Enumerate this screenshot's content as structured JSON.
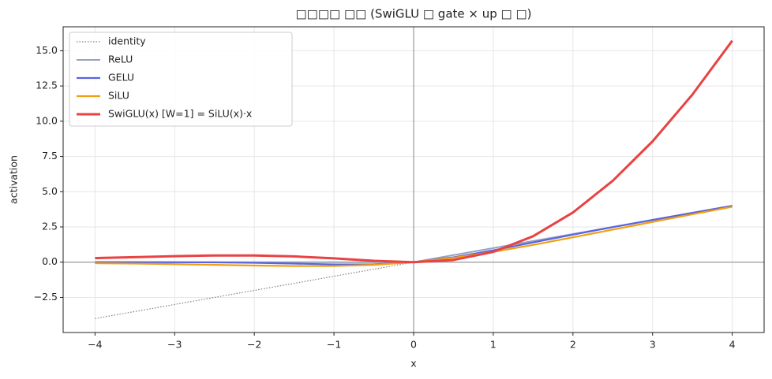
{
  "chart_data": {
    "type": "line",
    "title": "□□□□ □□ (SwiGLU □ gate × up □ □)",
    "x_label": "x",
    "y_label": "activation",
    "x": [
      -4,
      -3.5,
      -3,
      -2.5,
      -2,
      -1.5,
      -1,
      -0.5,
      0,
      0.5,
      1,
      1.5,
      2,
      2.5,
      3,
      3.5,
      4
    ],
    "series": [
      {
        "name": "identity",
        "color": "#808080",
        "width": 1.2,
        "dash": "dotted",
        "values": [
          -4,
          -3.5,
          -3,
          -2.5,
          -2,
          -1.5,
          -1,
          -0.5,
          0,
          0.5,
          1,
          1.5,
          2,
          2.5,
          3,
          3.5,
          4
        ]
      },
      {
        "name": "ReLU",
        "color": "#94a3c2",
        "width": 2,
        "dash": "solid",
        "values": [
          0,
          0,
          0,
          0,
          0,
          0,
          0,
          0,
          0,
          0.5,
          1,
          1.5,
          2,
          2.5,
          3,
          3.5,
          4
        ]
      },
      {
        "name": "GELU",
        "color": "#5b63e0",
        "width": 2.2,
        "dash": "solid",
        "values": [
          -0.0001,
          -0.0008,
          -0.004,
          -0.0155,
          -0.0455,
          -0.1002,
          -0.1587,
          -0.1543,
          0,
          0.3457,
          0.8413,
          1.3998,
          1.9545,
          2.4845,
          2.996,
          3.4992,
          3.9999
        ]
      },
      {
        "name": "SiLU",
        "color": "#f0a010",
        "width": 2.2,
        "dash": "solid",
        "values": [
          -0.0719,
          -0.1026,
          -0.1423,
          -0.1896,
          -0.2384,
          -0.2736,
          -0.2689,
          -0.1888,
          0,
          0.3112,
          0.7311,
          1.2264,
          1.7616,
          2.3103,
          2.8577,
          3.3974,
          3.9281
        ]
      },
      {
        "name": "SwiGLU(x) [W=1]  = SiLU(x)·x",
        "color": "#e84343",
        "width": 3,
        "dash": "solid",
        "values": [
          0.2878,
          0.359,
          0.4269,
          0.4741,
          0.4768,
          0.4104,
          0.2689,
          0.0944,
          0,
          0.1556,
          0.7311,
          1.8396,
          3.5232,
          5.7758,
          8.5731,
          11.891,
          15.712
        ]
      }
    ],
    "xlim": [
      -4.4,
      4.4
    ],
    "xticks": [
      {
        "value": -4,
        "label": "−4"
      },
      {
        "value": -3,
        "label": "−3"
      },
      {
        "value": -2,
        "label": "−2"
      },
      {
        "value": -1,
        "label": "−1"
      },
      0,
      1,
      2,
      3,
      4
    ],
    "ylim": [
      -4.99,
      16.7
    ],
    "yticks": [
      {
        "value": -2.5,
        "label": "−2.5"
      },
      {
        "value": 0,
        "label": "0.0"
      },
      {
        "value": 2.5,
        "label": "2.5"
      },
      {
        "value": 5,
        "label": "5.0"
      },
      {
        "value": 7.5,
        "label": "7.5"
      },
      {
        "value": 10,
        "label": "10.0"
      },
      {
        "value": 12.5,
        "label": "12.5"
      },
      {
        "value": 15,
        "label": "15.0"
      }
    ],
    "grid": true,
    "legend": "upper left"
  }
}
